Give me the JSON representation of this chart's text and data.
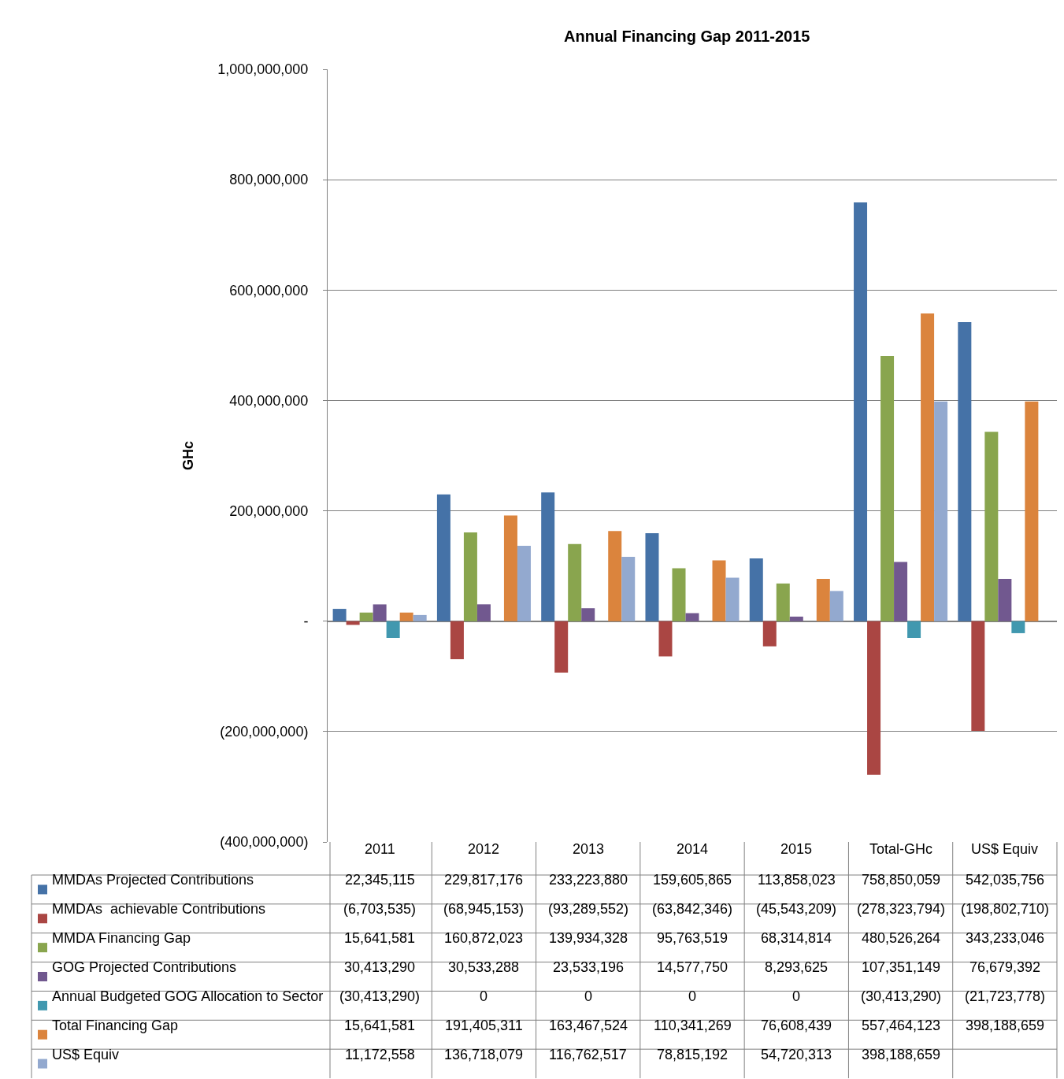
{
  "chart_data": {
    "type": "bar",
    "title": "Annual Financing Gap 2011-2015",
    "ylabel": "GHc",
    "categories": [
      "2011",
      "2012",
      "2013",
      "2014",
      "2015",
      "Total-GHc",
      "US$ Equiv"
    ],
    "ylim": [
      -400000000,
      1000000000
    ],
    "yticks": [
      {
        "value": -400000000,
        "label": "(400,000,000)"
      },
      {
        "value": -200000000,
        "label": "(200,000,000)"
      },
      {
        "value": 0,
        "label": "-"
      },
      {
        "value": 200000000,
        "label": "200,000,000"
      },
      {
        "value": 400000000,
        "label": "400,000,000"
      },
      {
        "value": 600000000,
        "label": "600,000,000"
      },
      {
        "value": 800000000,
        "label": "800,000,000"
      },
      {
        "value": 1000000000,
        "label": "1,000,000,000"
      }
    ],
    "grid": "y",
    "legend": "bottom",
    "series": [
      {
        "name": "MMDAs Projected Contributions",
        "color": "#4572a7",
        "values": [
          22345115,
          229817176,
          233223880,
          159605865,
          113858023,
          758850059,
          542035756
        ],
        "value_labels": [
          "22,345,115",
          "229,817,176",
          "233,223,880",
          "159,605,865",
          "113,858,023",
          "758,850,059",
          "542,035,756"
        ]
      },
      {
        "name": "MMDAs  achievable Contributions",
        "color": "#aa4643",
        "values": [
          -6703535,
          -68945153,
          -93289552,
          -63842346,
          -45543209,
          -278323794,
          -198802710
        ],
        "value_labels": [
          "(6,703,535)",
          "(68,945,153)",
          "(93,289,552)",
          "(63,842,346)",
          "(45,543,209)",
          "(278,323,794)",
          "(198,802,710)"
        ]
      },
      {
        "name": "MMDA Financing Gap",
        "color": "#89a54e",
        "values": [
          15641581,
          160872023,
          139934328,
          95763519,
          68314814,
          480526264,
          343233046
        ],
        "value_labels": [
          "15,641,581",
          "160,872,023",
          "139,934,328",
          "95,763,519",
          "68,314,814",
          "480,526,264",
          "343,233,046"
        ]
      },
      {
        "name": "GOG Projected Contributions",
        "color": "#71588f",
        "values": [
          30413290,
          30533288,
          23533196,
          14577750,
          8293625,
          107351149,
          76679392
        ],
        "value_labels": [
          "30,413,290",
          "30,533,288",
          "23,533,196",
          "14,577,750",
          "8,293,625",
          "107,351,149",
          "76,679,392"
        ]
      },
      {
        "name": "Annual Budgeted GOG Allocation to Sector",
        "color": "#4198af",
        "values": [
          -30413290,
          0,
          0,
          0,
          0,
          -30413290,
          -21723778
        ],
        "value_labels": [
          "(30,413,290)",
          "0",
          "0",
          "0",
          "0",
          "(30,413,290)",
          "(21,723,778)"
        ]
      },
      {
        "name": "Total Financing Gap",
        "color": "#db843d",
        "values": [
          15641581,
          191405311,
          163467524,
          110341269,
          76608439,
          557464123,
          398188659
        ],
        "value_labels": [
          "15,641,581",
          "191,405,311",
          "163,467,524",
          "110,341,269",
          "76,608,439",
          "557,464,123",
          "398,188,659"
        ]
      },
      {
        "name": "US$ Equiv",
        "color": "#93a9cf",
        "values": [
          11172558,
          136718079,
          116762517,
          78815192,
          54720313,
          398188659,
          null
        ],
        "value_labels": [
          "11,172,558",
          "136,718,079",
          "116,762,517",
          "78,815,192",
          "54,720,313",
          "398,188,659",
          null
        ]
      }
    ]
  }
}
